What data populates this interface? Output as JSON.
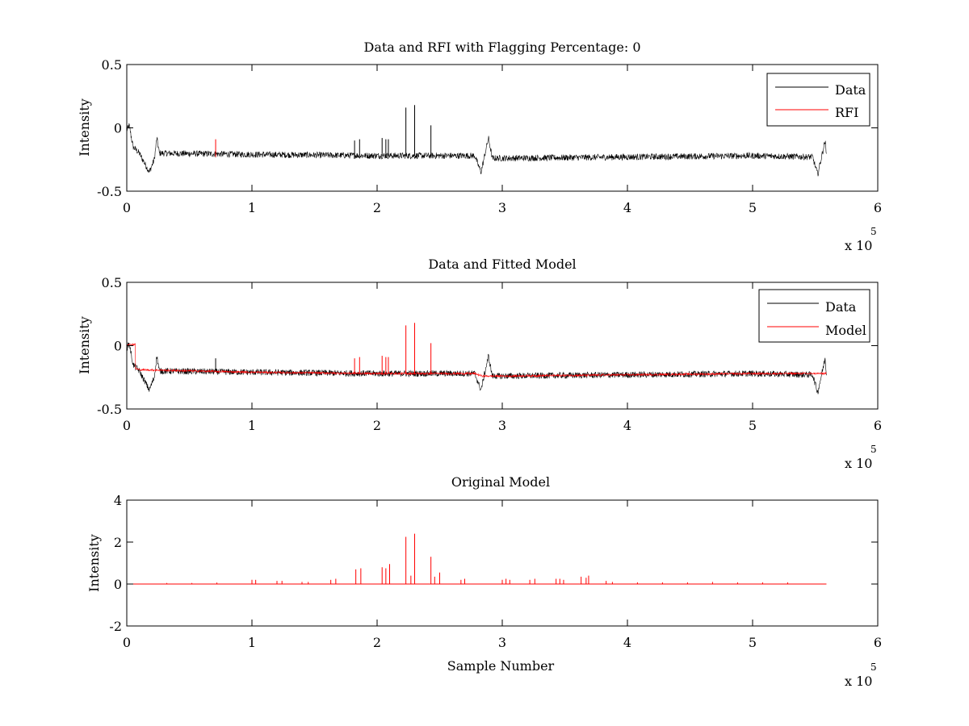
{
  "chart_data": [
    {
      "type": "line",
      "title": "Data and RFI with Flagging Percentage: 0",
      "xlabel": "",
      "ylabel": "Intensity",
      "xlim": [
        0,
        600000
      ],
      "ylim": [
        -0.5,
        0.5
      ],
      "xticks": [
        "0",
        "1",
        "2",
        "3",
        "4",
        "5",
        "6"
      ],
      "yticks": [
        "-0.5",
        "0",
        "0.5"
      ],
      "x_multiplier": {
        "base": "x 10",
        "exponent": "5"
      },
      "grid": false,
      "legend": {
        "placement": "top-right",
        "entries": [
          {
            "label": "Data",
            "color": "#000000"
          },
          {
            "label": "RFI",
            "color": "#ff0000"
          }
        ]
      },
      "series": [
        {
          "name": "Data",
          "color": "#000000",
          "style": "noisy",
          "noise": 0.025,
          "x": [
            0,
            2000,
            5000,
            10000,
            18000,
            22000,
            24000,
            26000,
            100000,
            200000,
            278000,
            283000,
            289000,
            292000,
            300000,
            400000,
            500000,
            548000,
            552000,
            558000,
            559000
          ],
          "y": [
            -0.02,
            0.02,
            -0.15,
            -0.2,
            -0.35,
            -0.25,
            -0.08,
            -0.2,
            -0.21,
            -0.22,
            -0.22,
            -0.35,
            -0.08,
            -0.24,
            -0.24,
            -0.23,
            -0.22,
            -0.23,
            -0.37,
            -0.1,
            -0.22
          ],
          "spikes_x": [
            182000,
            186000,
            204000,
            207000,
            209000,
            223000,
            230000,
            243000
          ],
          "spikes_y": [
            -0.1,
            -0.09,
            -0.08,
            -0.09,
            -0.09,
            0.16,
            0.18,
            0.02
          ]
        },
        {
          "name": "RFI",
          "color": "#ff0000",
          "style": "spikes",
          "spikes_x": [
            71000
          ],
          "spikes_y": [
            -0.09
          ],
          "base": -0.23
        }
      ]
    },
    {
      "type": "line",
      "title": "Data and Fitted Model",
      "xlabel": "",
      "ylabel": "Intensity",
      "xlim": [
        0,
        600000
      ],
      "ylim": [
        -0.5,
        0.5
      ],
      "xticks": [
        "0",
        "1",
        "2",
        "3",
        "4",
        "5",
        "6"
      ],
      "yticks": [
        "-0.5",
        "0",
        "0.5"
      ],
      "x_multiplier": {
        "base": "x 10",
        "exponent": "5"
      },
      "grid": false,
      "legend": {
        "placement": "top-right",
        "entries": [
          {
            "label": "Data",
            "color": "#000000"
          },
          {
            "label": "Model",
            "color": "#ff0000"
          }
        ]
      },
      "series": [
        {
          "name": "Data",
          "color": "#000000",
          "style": "noisy",
          "noise": 0.025,
          "x": [
            0,
            2000,
            5000,
            10000,
            18000,
            22000,
            24000,
            26000,
            100000,
            200000,
            278000,
            283000,
            289000,
            292000,
            300000,
            400000,
            500000,
            548000,
            552000,
            558000,
            559000
          ],
          "y": [
            -0.02,
            0.02,
            -0.15,
            -0.2,
            -0.35,
            -0.25,
            -0.08,
            -0.2,
            -0.21,
            -0.22,
            -0.22,
            -0.35,
            -0.08,
            -0.24,
            -0.24,
            -0.23,
            -0.22,
            -0.23,
            -0.37,
            -0.1,
            -0.22
          ],
          "spikes_x": [
            71000
          ],
          "spikes_y": [
            -0.1
          ]
        },
        {
          "name": "Model",
          "color": "#ff0000",
          "style": "noisy",
          "noise": 0.008,
          "x": [
            0,
            7000,
            7001,
            10000,
            100000,
            200000,
            278000,
            284000,
            300000,
            400000,
            500000,
            559000
          ],
          "y": [
            0.01,
            0.01,
            -0.18,
            -0.19,
            -0.21,
            -0.22,
            -0.22,
            -0.24,
            -0.24,
            -0.23,
            -0.22,
            -0.22
          ],
          "spikes_x": [
            182000,
            186000,
            204000,
            207000,
            209000,
            223000,
            230000,
            243000
          ],
          "spikes_y": [
            -0.1,
            -0.09,
            -0.08,
            -0.09,
            -0.09,
            0.16,
            0.18,
            0.02
          ]
        }
      ]
    },
    {
      "type": "line",
      "title": "Original Model",
      "xlabel": "Sample Number",
      "ylabel": "Intensity",
      "xlim": [
        0,
        600000
      ],
      "ylim": [
        -2,
        4
      ],
      "xticks": [
        "0",
        "1",
        "2",
        "3",
        "4",
        "5",
        "6"
      ],
      "yticks": [
        "-2",
        "0",
        "2",
        "4"
      ],
      "x_multiplier": {
        "base": "x 10",
        "exponent": "5"
      },
      "grid": false,
      "series": [
        {
          "name": "Original Model",
          "color": "#ff0000",
          "style": "spikes",
          "x": [
            0,
            559000
          ],
          "y": [
            0,
            0
          ],
          "base": 0,
          "spikes_x": [
            32000,
            52000,
            72000,
            100000,
            103000,
            120000,
            124000,
            140000,
            145000,
            163000,
            167000,
            183000,
            187000,
            204000,
            207000,
            210000,
            223000,
            227000,
            230000,
            243000,
            246000,
            250000,
            267000,
            270000,
            300000,
            303000,
            306000,
            322000,
            326000,
            343000,
            346000,
            349000,
            363000,
            367000,
            369000,
            383000,
            388000,
            408000,
            428000,
            448000,
            468000,
            488000,
            508000,
            528000
          ],
          "spikes_y": [
            0.05,
            0.05,
            0.07,
            0.2,
            0.2,
            0.15,
            0.15,
            0.1,
            0.1,
            0.2,
            0.25,
            0.7,
            0.75,
            0.8,
            0.75,
            0.95,
            2.25,
            0.4,
            2.4,
            1.3,
            0.35,
            0.55,
            0.2,
            0.25,
            0.2,
            0.25,
            0.2,
            0.2,
            0.25,
            0.25,
            0.25,
            0.2,
            0.35,
            0.3,
            0.4,
            0.15,
            0.1,
            0.08,
            0.08,
            0.08,
            0.1,
            0.08,
            0.08,
            0.08
          ]
        }
      ]
    }
  ]
}
